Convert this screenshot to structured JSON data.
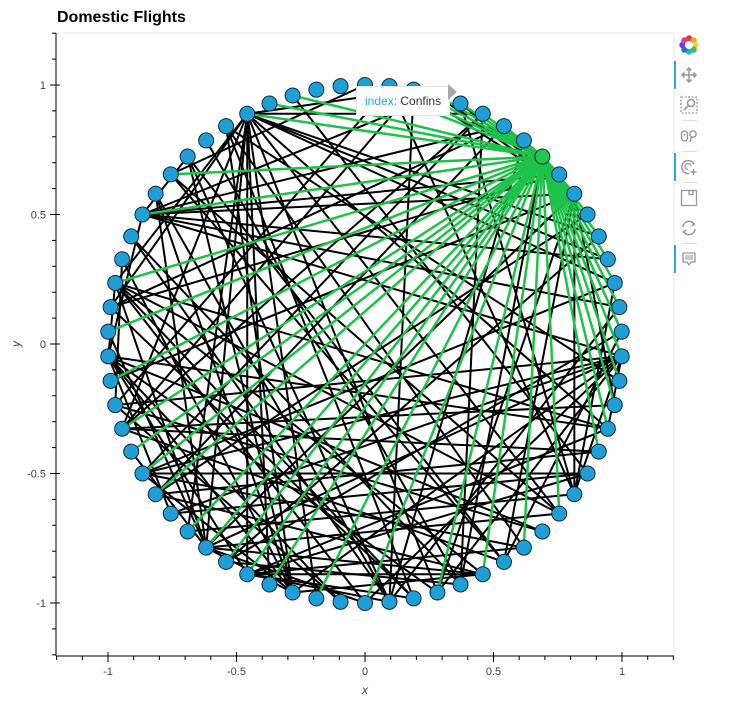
{
  "title": "Domestic Flights",
  "tooltip": {
    "key": "index:",
    "value": "Confins"
  },
  "toolbar": {
    "tools": [
      {
        "name": "bokeh-logo",
        "active": false
      },
      {
        "name": "pan-tool",
        "active": true
      },
      {
        "name": "box-zoom-tool",
        "active": false
      },
      {
        "name": "wheel-zoom-tool",
        "active": false
      },
      {
        "name": "tap-tool",
        "active": true
      },
      {
        "name": "save-tool",
        "active": false
      },
      {
        "name": "reset-tool",
        "active": false
      },
      {
        "name": "hover-tool",
        "active": true
      }
    ]
  },
  "colors": {
    "node_fill": "#1f9fd6",
    "node_stroke": "#0b2a3a",
    "node_selected_fill": "#22c84a",
    "edge": "#000000",
    "edge_highlight": "#1dc24a",
    "accent": "#26aae1"
  },
  "chart_data": {
    "type": "network",
    "title": "Domestic Flights",
    "xlabel": "x",
    "ylabel": "y",
    "xlim": [
      -1.2,
      1.2
    ],
    "ylim": [
      -1.2,
      1.2
    ],
    "xticks": [
      "-1",
      "-0.5",
      "0",
      "0.5",
      "1"
    ],
    "yticks": [
      "1",
      "0.5",
      "0",
      "-0.5",
      "-1"
    ],
    "layout": "circular",
    "node_count": 66,
    "selected_node": {
      "index": 8,
      "label": "Confins"
    },
    "highlight_edges_from": 8,
    "highlight_targets": [
      0,
      1,
      2,
      3,
      4,
      5,
      6,
      7,
      9,
      10,
      11,
      12,
      13,
      14,
      15,
      16,
      17,
      18,
      19,
      20,
      21,
      24,
      26,
      28,
      30,
      33,
      35,
      37,
      38,
      39,
      40,
      41,
      43,
      44,
      45,
      46,
      48,
      50,
      52,
      55,
      57,
      61,
      62,
      63
    ],
    "edges": [
      [
        61,
        12
      ],
      [
        61,
        13
      ],
      [
        61,
        14
      ],
      [
        61,
        20
      ],
      [
        61,
        24
      ],
      [
        61,
        30
      ],
      [
        61,
        35
      ],
      [
        61,
        37
      ],
      [
        61,
        38
      ],
      [
        61,
        40
      ],
      [
        61,
        41
      ],
      [
        61,
        46
      ],
      [
        61,
        51
      ],
      [
        61,
        52
      ],
      [
        61,
        2
      ],
      [
        61,
        5
      ],
      [
        10,
        2
      ],
      [
        10,
        3
      ],
      [
        10,
        4
      ],
      [
        10,
        48
      ],
      [
        10,
        30
      ],
      [
        10,
        40
      ],
      [
        10,
        27
      ],
      [
        10,
        19
      ],
      [
        10,
        23
      ],
      [
        10,
        55
      ],
      [
        17,
        20
      ],
      [
        17,
        30
      ],
      [
        17,
        40
      ],
      [
        17,
        55
      ],
      [
        17,
        44
      ],
      [
        17,
        23
      ],
      [
        17,
        33
      ],
      [
        17,
        36
      ],
      [
        17,
        42
      ],
      [
        17,
        47
      ],
      [
        49,
        20
      ],
      [
        49,
        30
      ],
      [
        49,
        34
      ],
      [
        49,
        36
      ],
      [
        49,
        38
      ],
      [
        49,
        42
      ],
      [
        49,
        55
      ],
      [
        49,
        52
      ],
      [
        49,
        25
      ],
      [
        40,
        45
      ],
      [
        40,
        33
      ],
      [
        40,
        28
      ],
      [
        40,
        24
      ],
      [
        40,
        52
      ],
      [
        40,
        50
      ],
      [
        40,
        36
      ],
      [
        40,
        56
      ],
      [
        38,
        22
      ],
      [
        38,
        26
      ],
      [
        38,
        28
      ],
      [
        38,
        31
      ],
      [
        38,
        32
      ],
      [
        38,
        20
      ],
      [
        36,
        44
      ],
      [
        36,
        28
      ],
      [
        36,
        53
      ],
      [
        36,
        56
      ],
      [
        36,
        58
      ],
      [
        36,
        60
      ],
      [
        52,
        28
      ],
      [
        52,
        24
      ],
      [
        52,
        20
      ],
      [
        52,
        31
      ],
      [
        52,
        33
      ],
      [
        32,
        56
      ],
      [
        32,
        2
      ],
      [
        32,
        54
      ],
      [
        32,
        7
      ],
      [
        32,
        15
      ],
      [
        32,
        58
      ],
      [
        55,
        3
      ],
      [
        55,
        6
      ],
      [
        55,
        9
      ],
      [
        55,
        13
      ],
      [
        55,
        15
      ],
      [
        55,
        58
      ],
      [
        46,
        19
      ],
      [
        46,
        21
      ],
      [
        46,
        27
      ],
      [
        46,
        2
      ],
      [
        46,
        5
      ],
      [
        44,
        26
      ],
      [
        44,
        22
      ],
      [
        44,
        14
      ],
      [
        44,
        5
      ],
      [
        43,
        21
      ],
      [
        43,
        6
      ],
      [
        43,
        11
      ],
      [
        43,
        28
      ],
      [
        47,
        53
      ],
      [
        47,
        1
      ],
      [
        47,
        25
      ],
      [
        47,
        34
      ],
      [
        29,
        5
      ],
      [
        29,
        8
      ],
      [
        29,
        54
      ],
      [
        29,
        59
      ],
      [
        23,
        14
      ],
      [
        23,
        41
      ],
      [
        23,
        1
      ],
      [
        23,
        4
      ],
      [
        60,
        18
      ],
      [
        60,
        26
      ],
      [
        60,
        31
      ],
      [
        57,
        24
      ],
      [
        57,
        27
      ],
      [
        57,
        0
      ],
      [
        51,
        9
      ],
      [
        51,
        31
      ],
      [
        51,
        6
      ],
      [
        39,
        12
      ],
      [
        39,
        16
      ],
      [
        39,
        29
      ],
      [
        22,
        63
      ],
      [
        22,
        42
      ],
      [
        27,
        16
      ],
      [
        27,
        58
      ]
    ]
  }
}
